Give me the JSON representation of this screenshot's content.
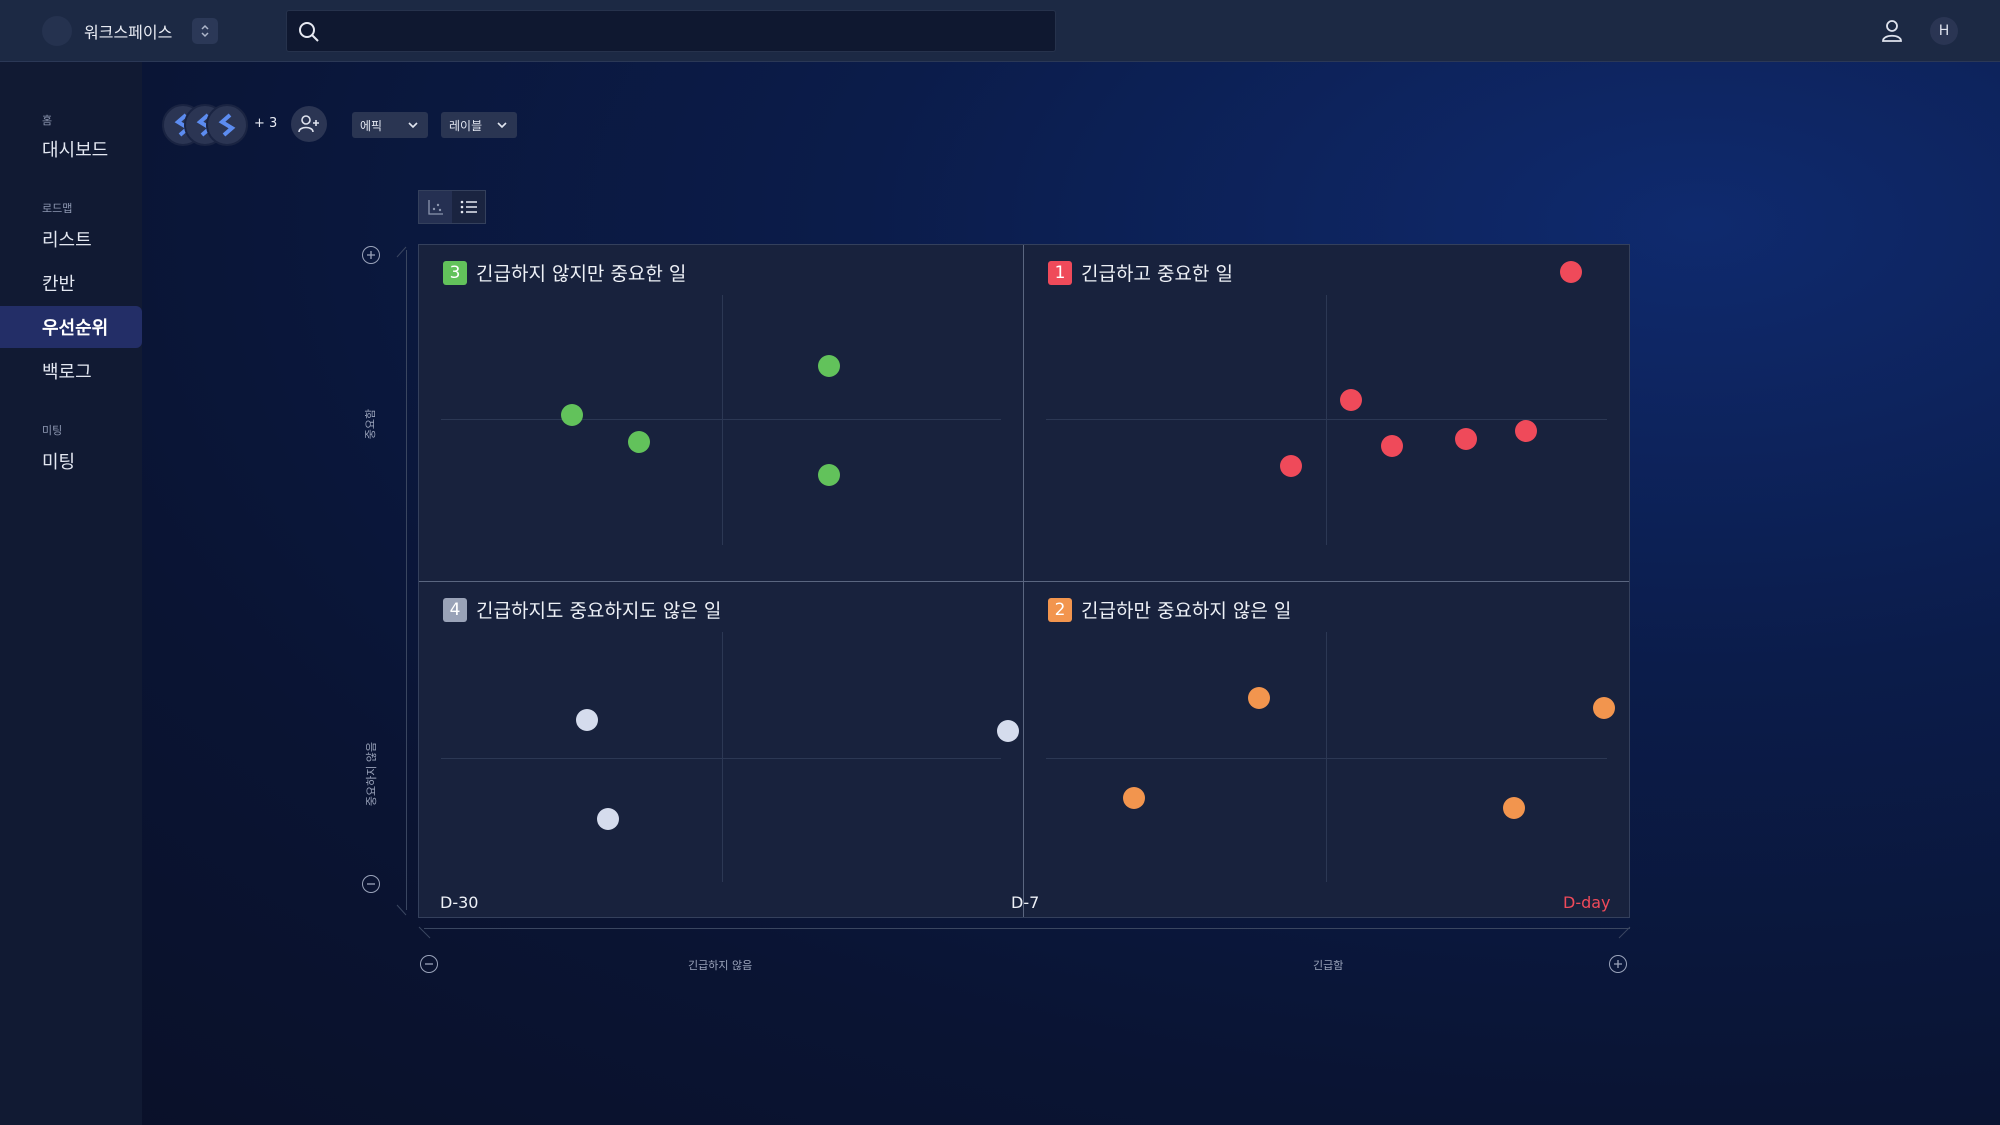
{
  "colors": {
    "urgent_important": "#ef4a5a",
    "not_urgent_important": "#62c25b",
    "urgent_not_important": "#f2954e",
    "neither": "#d5dced",
    "accent": "#232e67"
  },
  "topbar": {
    "workspace_name": "워크스페이스",
    "search_placeholder": "",
    "profile_initial": "H"
  },
  "sidebar": {
    "groups": [
      {
        "label": "홈",
        "items": [
          {
            "label": "대시보드"
          }
        ]
      },
      {
        "label": "로드맵",
        "items": [
          {
            "label": "리스트"
          },
          {
            "label": "칸반"
          },
          {
            "label": "우선순위",
            "active": true
          },
          {
            "label": "백로그"
          }
        ]
      },
      {
        "label": "미팅",
        "items": [
          {
            "label": "미팅"
          }
        ]
      }
    ]
  },
  "toolbar": {
    "extra_members": "+ 3",
    "epic_label": "에픽",
    "label_label": "레이블"
  },
  "matrix": {
    "quadrants": [
      {
        "number": "3",
        "title": "긴급하지 않지만 중요한 일",
        "color": "#62c25b"
      },
      {
        "number": "1",
        "title": "긴급하고 중요한 일",
        "color": "#ef4a5a"
      },
      {
        "number": "4",
        "title": "긴급하지도 중요하지도 않은 일",
        "color": "#9aa3b8"
      },
      {
        "number": "2",
        "title": "긴급하만 중요하지 않은 일",
        "color": "#f2954e"
      }
    ],
    "x_ticks": {
      "left": "D-30",
      "middle": "D-7",
      "right": "D-day"
    },
    "y_axis": {
      "top": "중요함",
      "bottom": "중요하지 않음"
    },
    "x_axis": {
      "left": "긴급하지 않음",
      "right": "긴급함"
    }
  }
}
